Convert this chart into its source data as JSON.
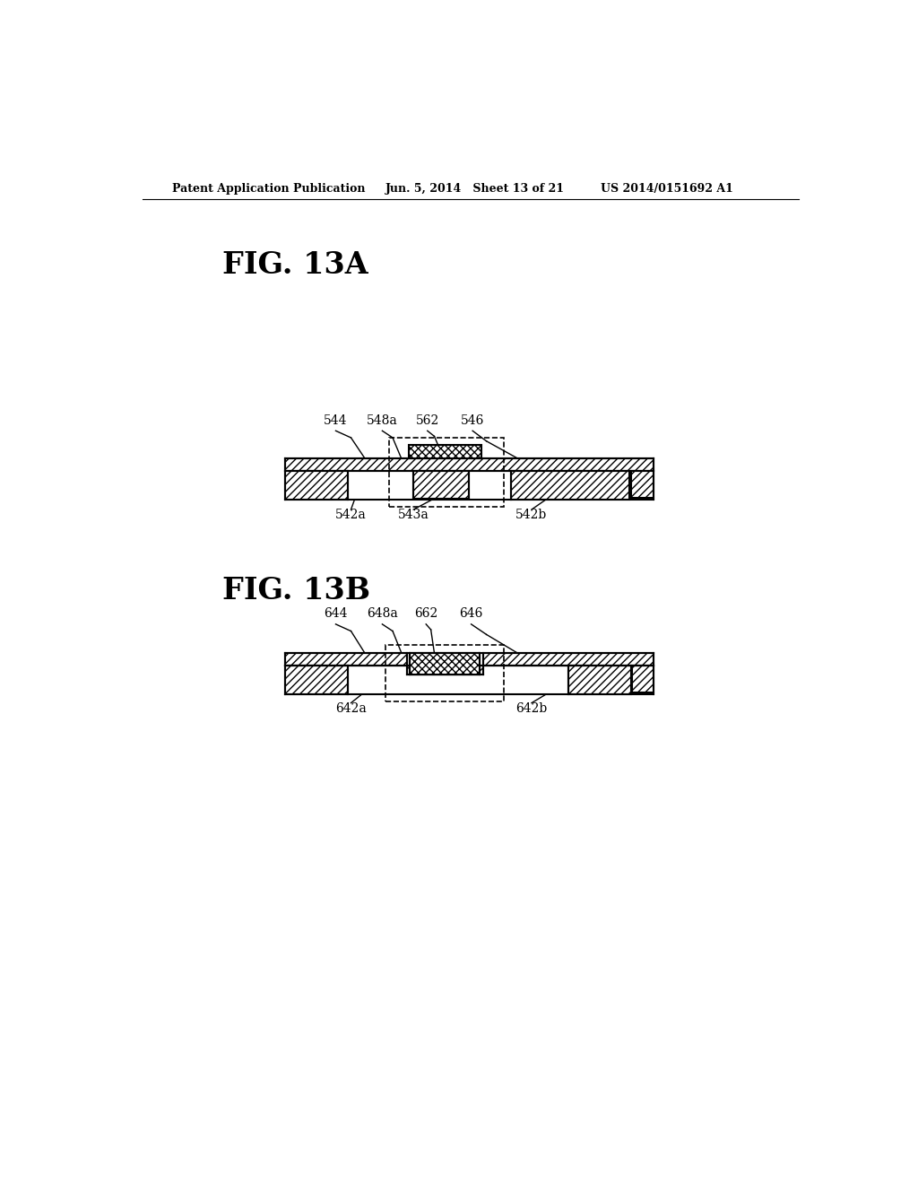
{
  "bg_color": "#ffffff",
  "header_left": "Patent Application Publication",
  "header_mid": "Jun. 5, 2014   Sheet 13 of 21",
  "header_right": "US 2014/0151692 A1",
  "fig_13a_label": "FIG. 13A",
  "fig_13b_label": "FIG. 13B",
  "line_color": "#000000"
}
